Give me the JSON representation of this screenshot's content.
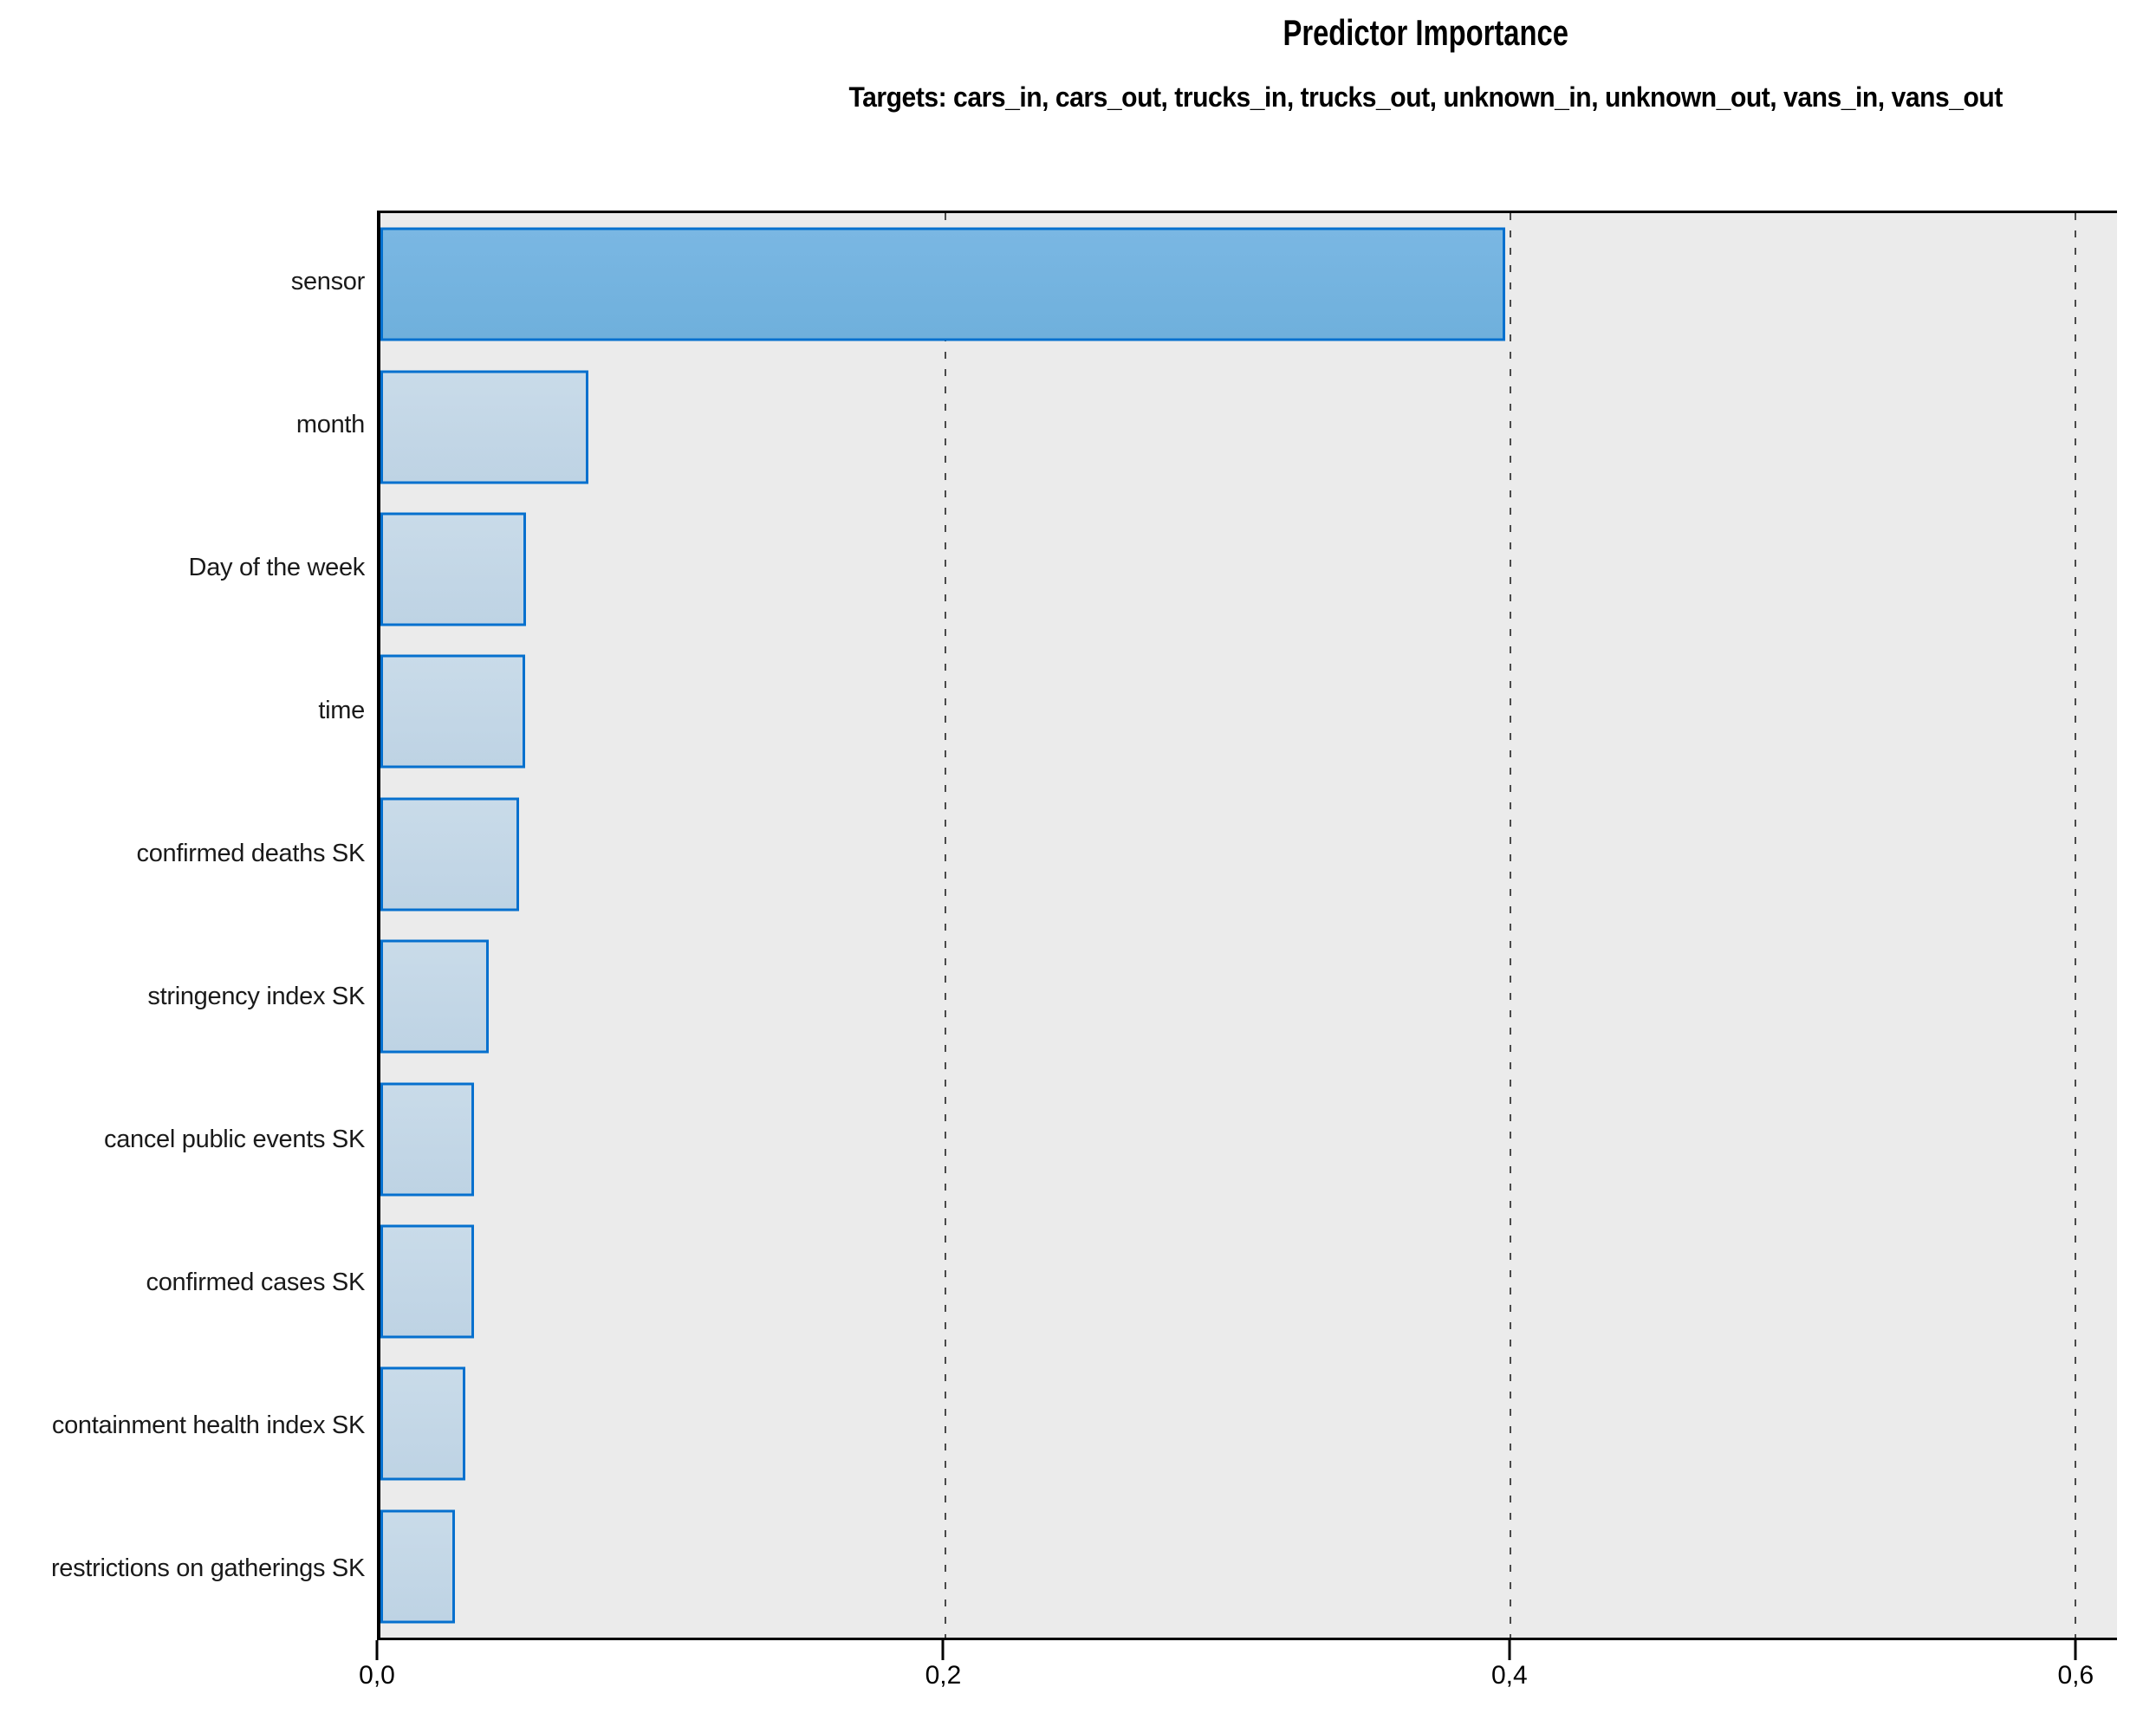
{
  "title": "Predictor Importance",
  "subtitle": "Targets: cars_in, cars_out, trucks_in, trucks_out, unknown_in, unknown_out, vans_in, vans_out",
  "chart_data": {
    "type": "bar",
    "orientation": "horizontal",
    "title": "Predictor Importance",
    "subtitle": "Targets: cars_in, cars_out, trucks_in, trucks_out, unknown_in, unknown_out, vans_in, vans_out",
    "categories": [
      "sensor",
      "month",
      "Day of the week",
      "time",
      "confirmed deaths SK",
      "stringency index SK",
      "cancel public events SK",
      "confirmed cases SK",
      "containment health index SK",
      "restrictions on gatherings SK"
    ],
    "values": [
      0.398,
      0.0735,
      0.0514,
      0.0511,
      0.049,
      0.0383,
      0.0331,
      0.0331,
      0.03,
      0.0263
    ],
    "highlight_index": 0,
    "xlabel": "",
    "ylabel": "",
    "xlim": [
      0,
      0.6146
    ],
    "x_tick_labels": [
      "0,0",
      "0,2",
      "0,4",
      "0,6"
    ],
    "x_tick_values": [
      0,
      0.2,
      0.4,
      0.6
    ],
    "grid": "dashed vertical gridlines at 0.2, 0.4, 0.6",
    "legend_position": "none",
    "colors": {
      "bar_fill_primary": "#73b2e0",
      "bar_fill_secondary": "#c3d6e6",
      "bar_border": "#0670ce",
      "plot_background": "#ebebeb",
      "axis_color": "#000000",
      "grid_color": "#4a4a4a",
      "page_background": "#ffffff"
    }
  }
}
